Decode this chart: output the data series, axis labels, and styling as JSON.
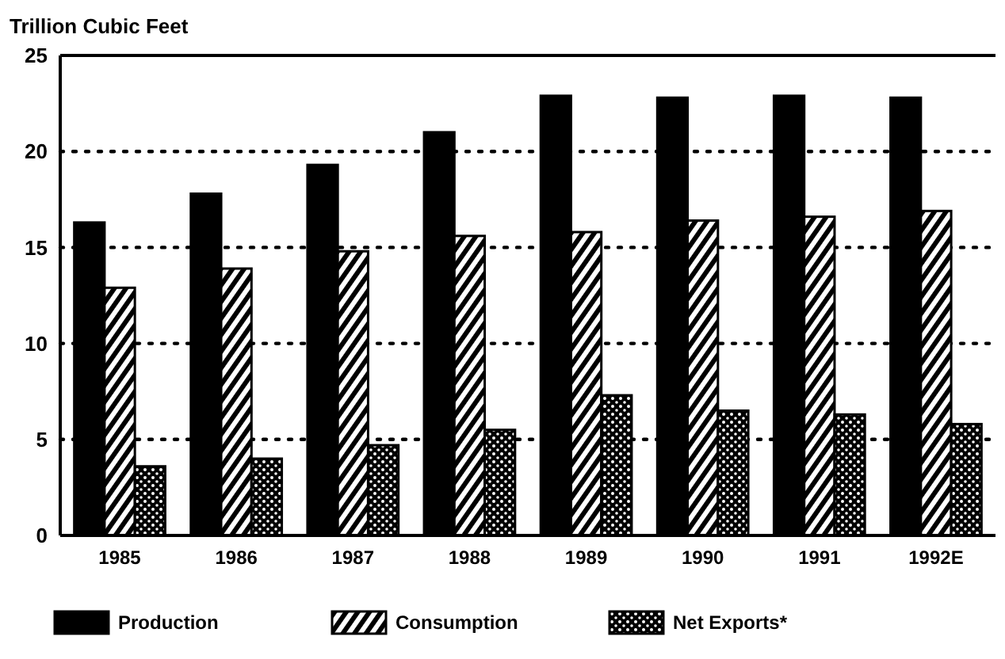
{
  "chart_data": {
    "type": "bar",
    "ylabel": "Trillion Cubic Feet",
    "categories": [
      "1985",
      "1986",
      "1987",
      "1988",
      "1989",
      "1990",
      "1991",
      "1992E"
    ],
    "series": [
      {
        "name": "Production",
        "color": "#000000",
        "values": [
          16.3,
          17.8,
          19.3,
          21,
          22.9,
          22.8,
          22.9,
          22.8
        ]
      },
      {
        "name": "Consumption",
        "color": "#000000",
        "values": [
          12.9,
          13.9,
          14.8,
          15.6,
          15.8,
          16.4,
          16.6,
          16.9
        ]
      },
      {
        "name": "Net Exports*",
        "color": "#000000",
        "values": [
          3.6,
          4,
          4.7,
          5.5,
          7.3,
          6.5,
          6.3,
          5.8
        ]
      }
    ],
    "ylim": [
      0,
      25
    ],
    "yticks": [
      0,
      5,
      10,
      15,
      20,
      25
    ],
    "grid": "y",
    "legend": "bottom"
  }
}
